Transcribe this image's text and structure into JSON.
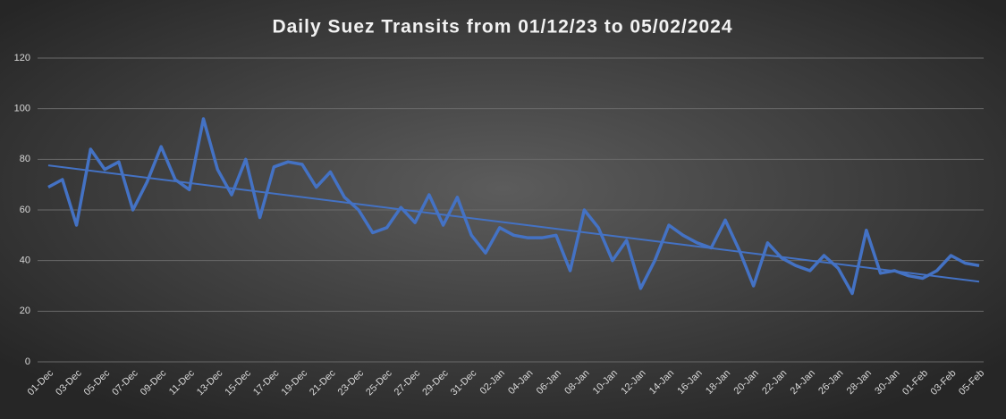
{
  "chart_data": {
    "type": "line",
    "title": "Daily Suez Transits from 01/12/23 to 05/02/2024",
    "categories": [
      "01-Dec",
      null,
      "03-Dec",
      null,
      "05-Dec",
      null,
      "07-Dec",
      null,
      "09-Dec",
      null,
      "11-Dec",
      null,
      "13-Dec",
      null,
      "15-Dec",
      null,
      "17-Dec",
      null,
      "19-Dec",
      null,
      "21-Dec",
      null,
      "23-Dec",
      null,
      "25-Dec",
      null,
      "27-Dec",
      null,
      "29-Dec",
      null,
      "31-Dec",
      null,
      "02-Jan",
      null,
      "04-Jan",
      null,
      "06-Jan",
      null,
      "08-Jan",
      null,
      "10-Jan",
      null,
      "12-Jan",
      null,
      "14-Jan",
      null,
      "16-Jan",
      null,
      "18-Jan",
      null,
      "20-Jan",
      null,
      "22-Jan",
      null,
      "24-Jan",
      null,
      "26-Jan",
      null,
      "28-Jan",
      null,
      "30-Jan",
      null,
      "01-Feb",
      null,
      "03-Feb",
      null,
      "05-Feb"
    ],
    "series": [
      {
        "color": "#4472c4",
        "values": [
          69,
          72,
          54,
          84,
          76,
          79,
          60,
          71,
          85,
          72,
          68,
          96,
          76,
          66,
          80,
          57,
          77,
          79,
          78,
          69,
          75,
          65,
          60,
          51,
          53,
          61,
          55,
          66,
          54,
          65,
          50,
          43,
          53,
          50,
          49,
          49,
          50,
          36,
          60,
          53,
          40,
          48,
          29,
          40,
          54,
          50,
          47,
          45,
          56,
          44,
          30,
          47,
          41,
          38,
          36,
          42,
          37,
          27,
          52,
          35,
          36,
          34,
          33,
          36,
          42,
          39,
          38
        ]
      }
    ],
    "trendline": true,
    "ylim": [
      0,
      120
    ],
    "yticks": [
      0,
      20,
      40,
      60,
      80,
      100,
      120
    ],
    "grid": true
  }
}
